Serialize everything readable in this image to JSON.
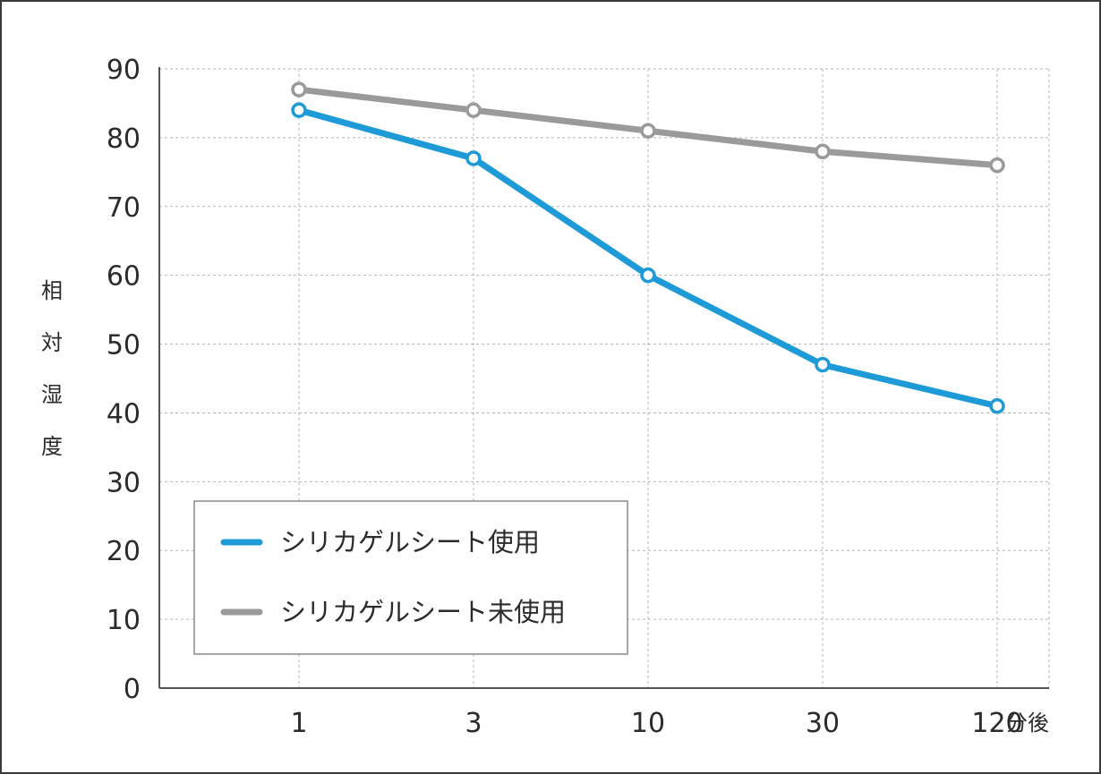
{
  "chart_data": {
    "type": "line",
    "categories": [
      "1",
      "3",
      "10",
      "30",
      "120"
    ],
    "x_unit": "分後",
    "ylabel": "相対湿度",
    "ylim": [
      0,
      90
    ],
    "yticks": [
      "0",
      "10",
      "20",
      "30",
      "40",
      "50",
      "60",
      "70",
      "80",
      "90"
    ],
    "grid": true,
    "legend_position": "bottom-left",
    "series": [
      {
        "name": "シリカゲルシート使用",
        "color": "#1e9ad6",
        "values": [
          84,
          77,
          60,
          47,
          41
        ]
      },
      {
        "name": "シリカゲルシート未使用",
        "color": "#9a9a9a",
        "values": [
          87,
          84,
          81,
          78,
          76
        ]
      }
    ]
  }
}
